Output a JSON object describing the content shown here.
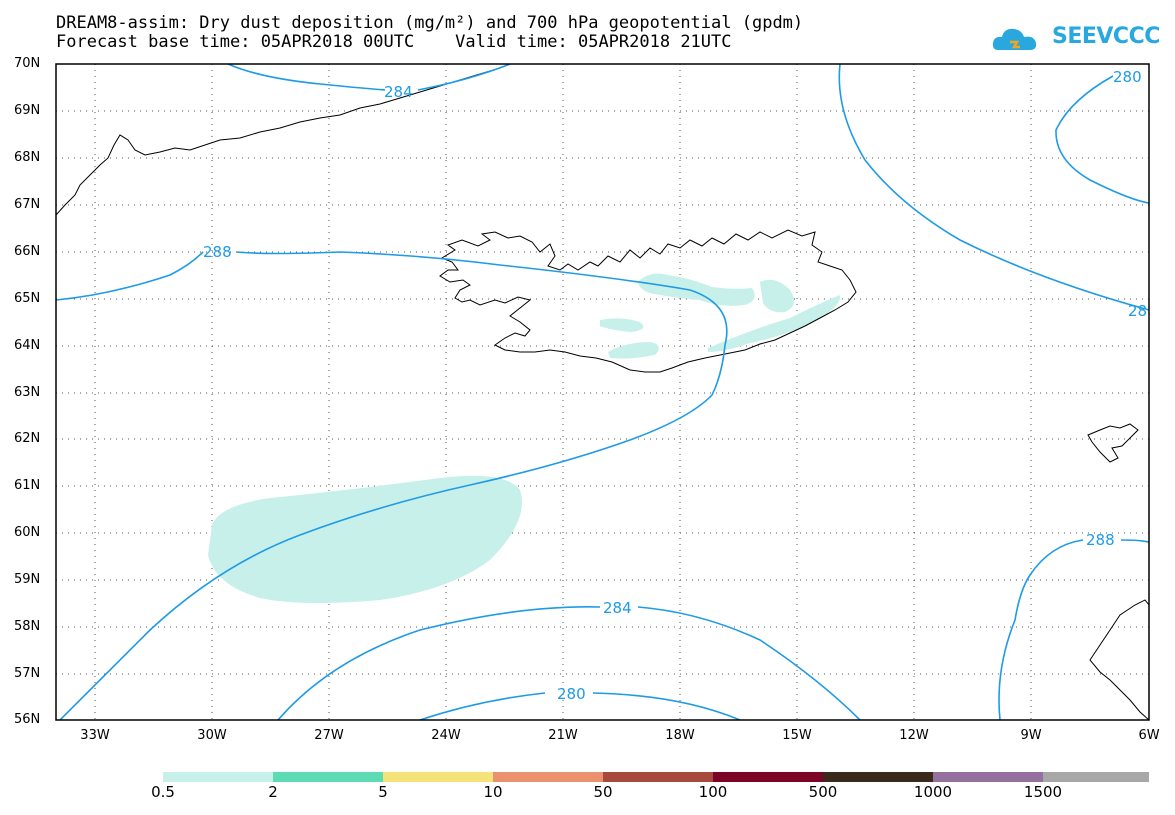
{
  "title_line1": "DREAM8-assim: Dry dust deposition (mg/m²) and 700 hPa geopotential (gpdm)",
  "title_line2": "Forecast base time: 05APR2018 00UTC    Valid time: 05APR2018 21UTC",
  "logo_text": "SEEVCCC",
  "colors": {
    "contour": "#1e9be6",
    "coast": "#000000",
    "dust_low": "#c8f0ea",
    "logo": "#29a8e0"
  },
  "lat_labels": [
    "70N",
    "69N",
    "68N",
    "67N",
    "66N",
    "65N",
    "64N",
    "63N",
    "62N",
    "61N",
    "60N",
    "59N",
    "58N",
    "57N",
    "56N"
  ],
  "lon_labels": [
    "33W",
    "30W",
    "27W",
    "24W",
    "21W",
    "18W",
    "15W",
    "12W",
    "9W",
    "6W"
  ],
  "contour_labels": [
    "284",
    "288",
    "280",
    "28",
    "288",
    "284",
    "280"
  ],
  "colorbar": {
    "colors": [
      "#c8f0ea",
      "#5ddcb4",
      "#f5e37a",
      "#ea9170",
      "#a8493e",
      "#7c0426",
      "#3b2a1b",
      "#94709e",
      "#a7a7a7"
    ],
    "labels": [
      "0.5",
      "2",
      "5",
      "10",
      "50",
      "100",
      "500",
      "1000",
      "1500"
    ]
  }
}
